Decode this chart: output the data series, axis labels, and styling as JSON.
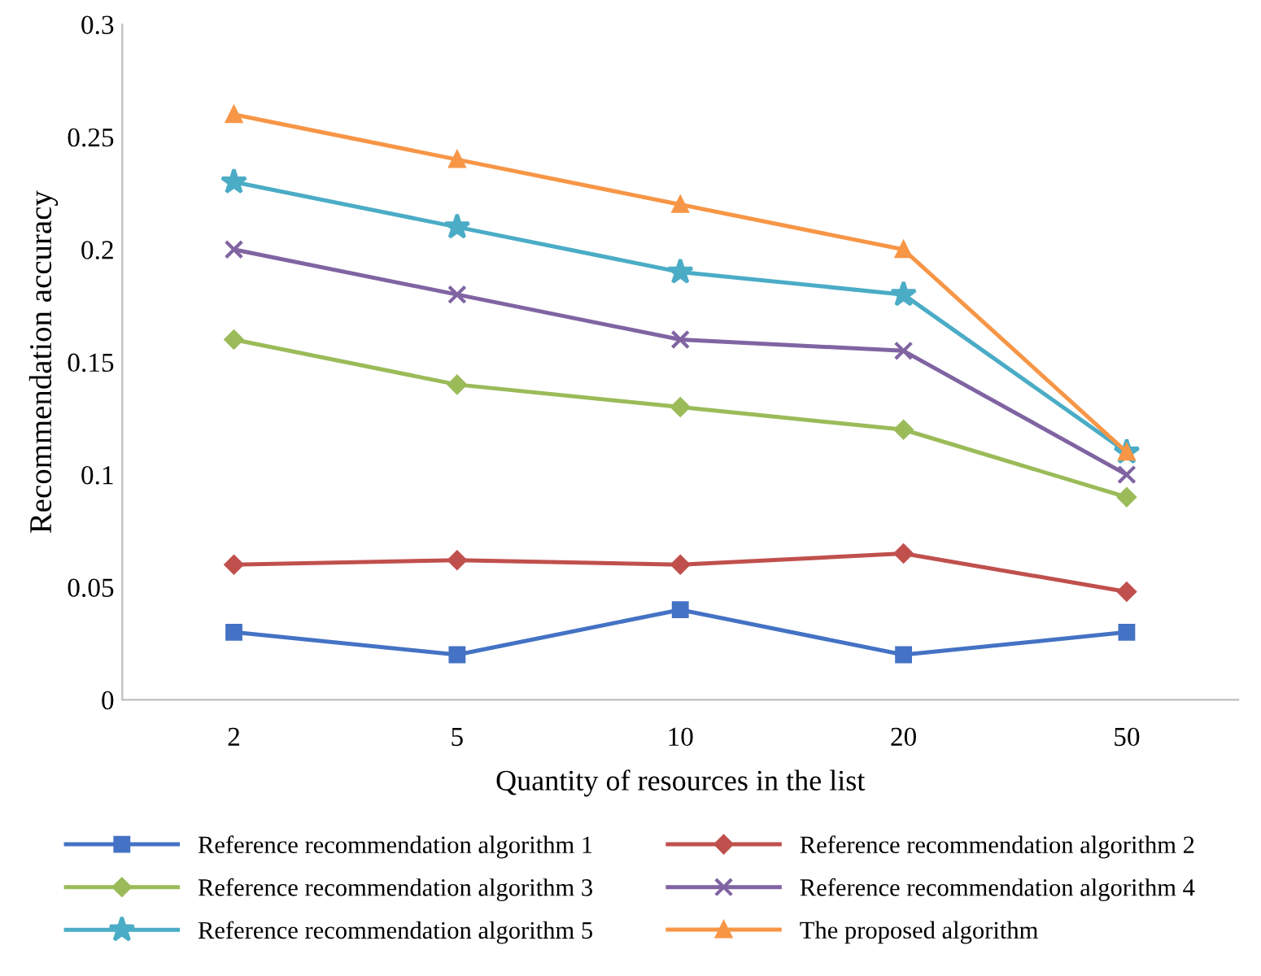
{
  "chart_data": {
    "type": "line",
    "xlabel": "Quantity of resources in the list",
    "ylabel": "Recommendation accuracy",
    "categories": [
      "2",
      "5",
      "10",
      "20",
      "50"
    ],
    "series": [
      {
        "name": "Reference recommendation algorithm 1",
        "color": "#4472c4",
        "marker": "square",
        "values": [
          0.03,
          0.02,
          0.04,
          0.02,
          0.03
        ]
      },
      {
        "name": "Reference recommendation algorithm 2",
        "color": "#c0504d",
        "marker": "diamond",
        "values": [
          0.06,
          0.062,
          0.06,
          0.065,
          0.048
        ]
      },
      {
        "name": "Reference recommendation algorithm 3",
        "color": "#9bbb59",
        "marker": "diamond",
        "values": [
          0.16,
          0.14,
          0.13,
          0.12,
          0.09
        ]
      },
      {
        "name": "Reference recommendation algorithm 4",
        "color": "#8064a2",
        "marker": "cross",
        "values": [
          0.2,
          0.18,
          0.16,
          0.155,
          0.1
        ]
      },
      {
        "name": "Reference recommendation algorithm 5",
        "color": "#4bacc6",
        "marker": "star",
        "values": [
          0.23,
          0.21,
          0.19,
          0.18,
          0.11
        ]
      },
      {
        "name": "The proposed algorithm",
        "color": "#f79646",
        "marker": "triangle",
        "values": [
          0.26,
          0.24,
          0.22,
          0.2,
          0.11
        ]
      }
    ],
    "ylim": [
      0,
      0.3
    ],
    "yticks": [
      0,
      0.05,
      0.1,
      0.15,
      0.2,
      0.25,
      0.3
    ],
    "grid": false,
    "legend": "bottom",
    "line_style": "solid"
  }
}
